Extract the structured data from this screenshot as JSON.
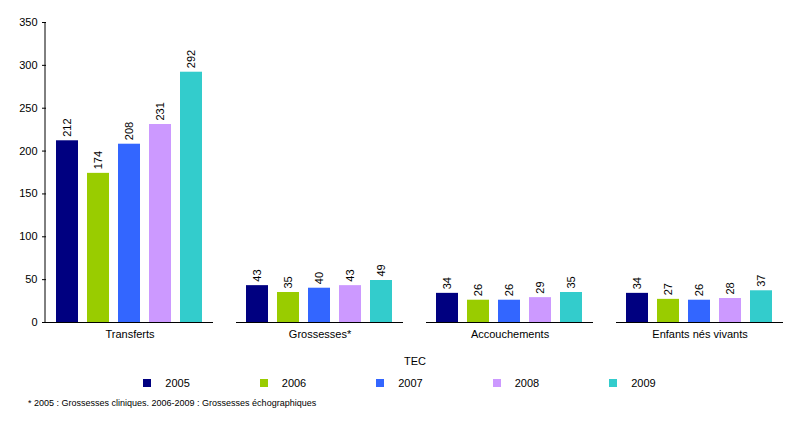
{
  "chart_data": {
    "type": "bar",
    "categories": [
      "Transferts",
      "Grossesses*",
      "Accouchements",
      "Enfants nés vivants"
    ],
    "xlabel": "TEC",
    "series": [
      {
        "name": "2005",
        "color": "#000080",
        "values": [
          212,
          43,
          34,
          34
        ]
      },
      {
        "name": "2006",
        "color": "#99cc00",
        "values": [
          174,
          35,
          26,
          27
        ]
      },
      {
        "name": "2007",
        "color": "#3366ff",
        "values": [
          208,
          40,
          26,
          26
        ]
      },
      {
        "name": "2008",
        "color": "#cc99ff",
        "values": [
          231,
          43,
          29,
          28
        ]
      },
      {
        "name": "2009",
        "color": "#33cccc",
        "values": [
          292,
          49,
          35,
          37
        ]
      }
    ],
    "ylim": [
      0,
      350
    ],
    "yticks": [
      0,
      50,
      100,
      150,
      200,
      250,
      300,
      350
    ],
    "grid": false,
    "data_labels": true,
    "legend": "bottom",
    "annotations": [
      "* 2005 : Grossesses cliniques. 2006-2009 : Grossesses échographiques"
    ]
  }
}
